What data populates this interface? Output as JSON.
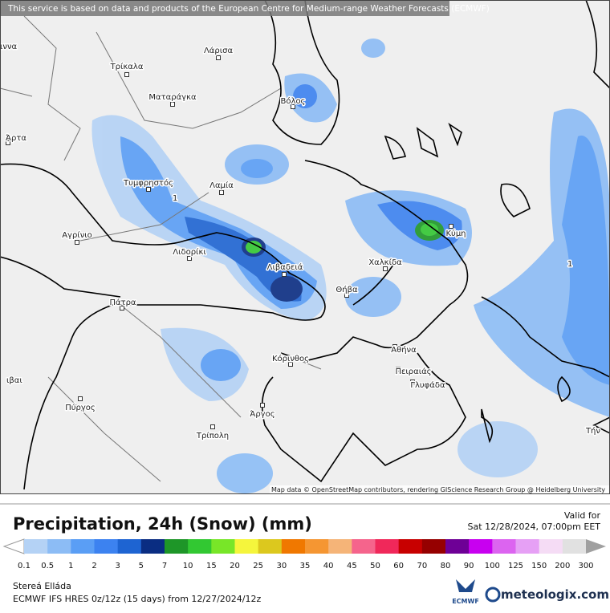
{
  "banner": "This service is based on data and products of the European Centre for Medium-range Weather Forecasts (ECMWF)",
  "attribution": "Map data © OpenStreetMap contributors, rendering GIScience Research Group @ Heidelberg University",
  "cities": [
    "ιννα",
    "Τρίκαλα",
    "Λάρισα",
    "Ματαράγκα",
    "Βόλος",
    "Άρτα",
    "Τυμφρηστός",
    "Λαμία",
    "Αγρίνιο",
    "Λιδορίκι",
    "Κύμη",
    "Χαλκίδα",
    "Λιβαδειά",
    "Θήβα",
    "Πάτρα",
    "Κόρινθος",
    "Αθήνα",
    "Πειραιάς",
    "Γλυφάδα",
    "ιβαι",
    "Πύργος",
    "Άργος",
    "Τρίπολη",
    "Τήν"
  ],
  "contour_label": "1",
  "title": "Precipitation, 24h (Snow) (mm)",
  "valid_label": "Valid for",
  "valid_time": "Sat 12/28/2024, 07:00pm EET",
  "legend": {
    "labels": [
      "0.1",
      "0.5",
      "1",
      "2",
      "3",
      "5",
      "7",
      "10",
      "15",
      "20",
      "25",
      "30",
      "35",
      "40",
      "45",
      "50",
      "60",
      "70",
      "80",
      "90",
      "100",
      "125",
      "150",
      "200",
      "300"
    ],
    "colors": [
      "#b4d2f5",
      "#8cbcf5",
      "#5a9ef5",
      "#3c82f0",
      "#1e64d2",
      "#0a2d82",
      "#1e9628",
      "#32c832",
      "#78e628",
      "#f5f53c",
      "#dcc81e",
      "#f07800",
      "#f59632",
      "#f5b478",
      "#f5648c",
      "#f0285a",
      "#c80000",
      "#960000",
      "#6e0096",
      "#c800f0",
      "#dc64f0",
      "#e6a0f5",
      "#f5dcf5",
      "#e1e1e1"
    ]
  },
  "region": "Stereá Elláda",
  "model": "ECMWF IFS HRES 0z/12z (15 days) from 12/27/2024/12z",
  "logo_left": "ECMWF",
  "logo_right": "meteologix.com"
}
